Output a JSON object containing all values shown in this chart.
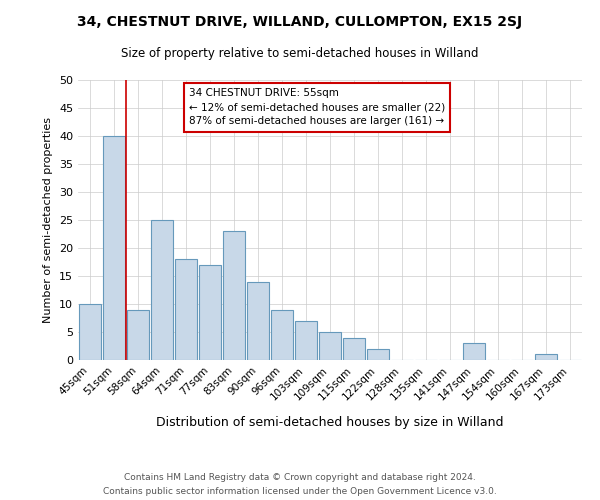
{
  "title": "34, CHESTNUT DRIVE, WILLAND, CULLOMPTON, EX15 2SJ",
  "subtitle": "Size of property relative to semi-detached houses in Willand",
  "xlabel": "Distribution of semi-detached houses by size in Willand",
  "ylabel": "Number of semi-detached properties",
  "categories": [
    "45sqm",
    "51sqm",
    "58sqm",
    "64sqm",
    "71sqm",
    "77sqm",
    "83sqm",
    "90sqm",
    "96sqm",
    "103sqm",
    "109sqm",
    "115sqm",
    "122sqm",
    "128sqm",
    "135sqm",
    "141sqm",
    "147sqm",
    "154sqm",
    "160sqm",
    "167sqm",
    "173sqm"
  ],
  "values": [
    10,
    40,
    9,
    25,
    18,
    17,
    23,
    14,
    9,
    7,
    5,
    4,
    2,
    0,
    0,
    0,
    3,
    0,
    0,
    1,
    0
  ],
  "bar_color": "#c8d8e8",
  "bar_edge_color": "#6699bb",
  "annotation_title": "34 CHESTNUT DRIVE: 55sqm",
  "annotation_line1": "← 12% of semi-detached houses are smaller (22)",
  "annotation_line2": "87% of semi-detached houses are larger (161) →",
  "vline_color": "#cc0000",
  "vline_x_index": 1.5,
  "ylim": [
    0,
    50
  ],
  "yticks": [
    0,
    5,
    10,
    15,
    20,
    25,
    30,
    35,
    40,
    45,
    50
  ],
  "footnote1": "Contains HM Land Registry data © Crown copyright and database right 2024.",
  "footnote2": "Contains public sector information licensed under the Open Government Licence v3.0.",
  "background_color": "#ffffff",
  "grid_color": "#cccccc"
}
